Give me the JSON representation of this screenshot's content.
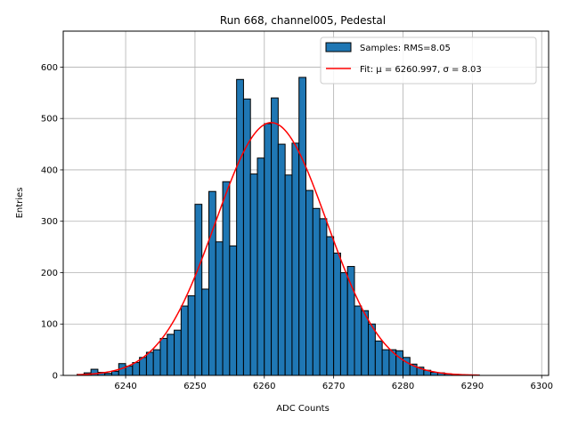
{
  "chart_data": {
    "type": "bar",
    "title": "Run 668, channel005, Pedestal",
    "xlabel": "ADC Counts",
    "ylabel": "Entries",
    "xlim": [
      6231,
      6301
    ],
    "ylim": [
      0,
      670
    ],
    "xticks": [
      6240,
      6250,
      6260,
      6270,
      6280,
      6290,
      6300
    ],
    "yticks": [
      0,
      100,
      200,
      300,
      400,
      500,
      600
    ],
    "grid": true,
    "legend_position": "top-right",
    "colors": {
      "bars": "#1f77b4",
      "bar_edge": "#000000",
      "fit": "#ff0000",
      "grid": "#b0b0b0"
    },
    "series": [
      {
        "name": "Samples: RMS=8.05",
        "kind": "histogram",
        "bin_width": 1,
        "bin_start": [
          6233,
          6234,
          6235,
          6236,
          6237,
          6238,
          6239,
          6240,
          6241,
          6242,
          6243,
          6244,
          6245,
          6246,
          6247,
          6248,
          6249,
          6250,
          6251,
          6252,
          6253,
          6254,
          6255,
          6256,
          6257,
          6258,
          6259,
          6260,
          6261,
          6262,
          6263,
          6264,
          6265,
          6266,
          6267,
          6268,
          6269,
          6270,
          6271,
          6272,
          6273,
          6274,
          6275,
          6276,
          6277,
          6278,
          6279,
          6280,
          6281,
          6282,
          6283,
          6284,
          6285,
          6286,
          6287,
          6288,
          6289,
          6290
        ],
        "counts": [
          2,
          5,
          12,
          6,
          4,
          8,
          23,
          18,
          25,
          35,
          45,
          50,
          72,
          80,
          88,
          135,
          155,
          333,
          168,
          358,
          260,
          377,
          252,
          576,
          538,
          392,
          423,
          490,
          540,
          450,
          390,
          452,
          580,
          360,
          325,
          305,
          270,
          238,
          200,
          212,
          135,
          126,
          100,
          67,
          50,
          50,
          48,
          35,
          22,
          16,
          10,
          6,
          5,
          3,
          2,
          1,
          1,
          1
        ]
      },
      {
        "name": "Fit: μ = 6260.997, σ = 8.03",
        "kind": "gaussian_fit",
        "mu": 6260.997,
        "sigma": 8.03,
        "amplitude": 492,
        "x_range": [
          6233,
          6291
        ]
      }
    ]
  }
}
